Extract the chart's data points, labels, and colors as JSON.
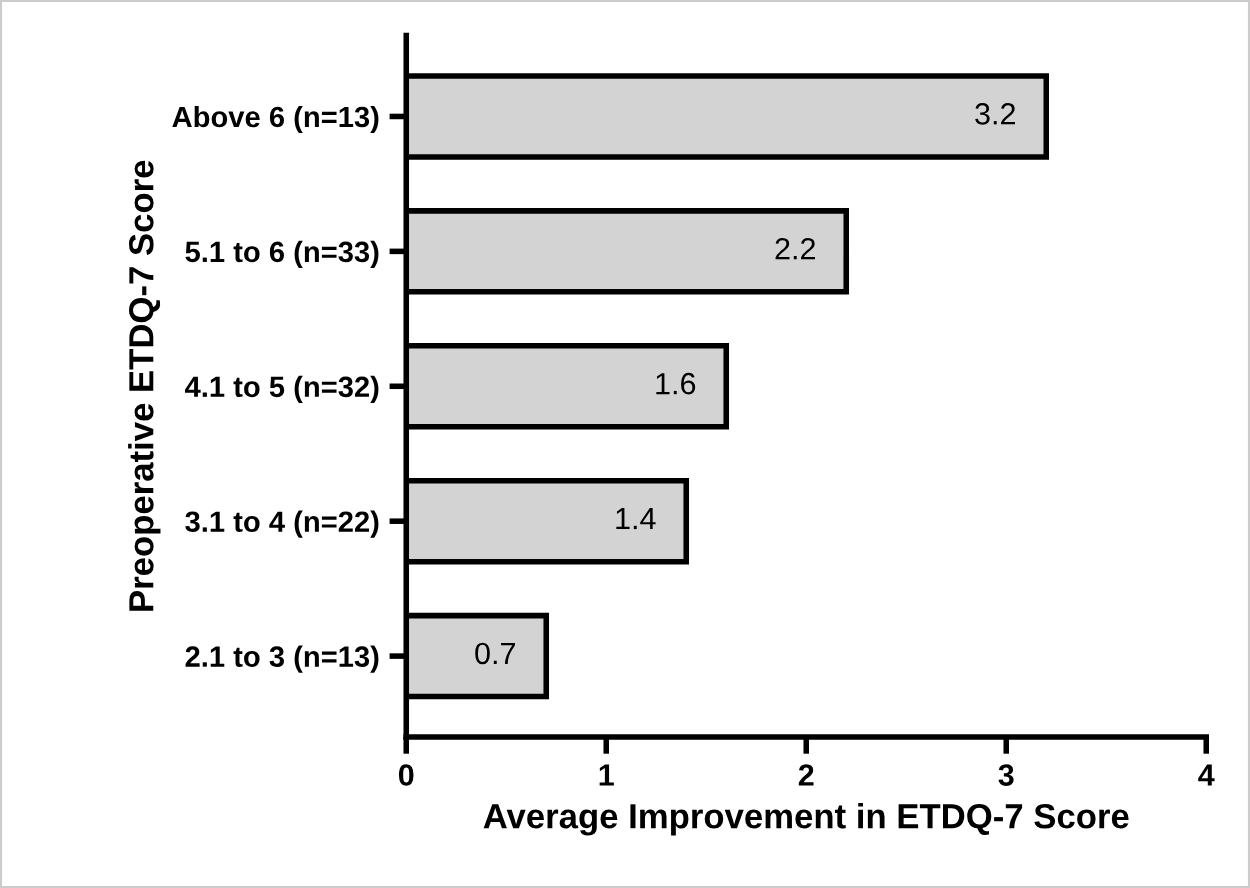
{
  "chart_data": {
    "type": "bar",
    "orientation": "horizontal",
    "xlabel": "Average Improvement in ETDQ-7 Score",
    "ylabel": "Preoperative ETDQ-7 Score",
    "categories": [
      "Above 6 (n=13)",
      "5.1 to 6 (n=33)",
      "4.1 to 5 (n=32)",
      "3.1 to 4 (n=22)",
      "2.1 to 3 (n=13)"
    ],
    "values": [
      3.2,
      2.2,
      1.6,
      1.4,
      0.7
    ],
    "color": "#d3d3d3",
    "data_labels": true,
    "xlim": [
      0,
      4
    ],
    "xticks": [
      0,
      1,
      2,
      3,
      4
    ],
    "grid": false,
    "legend": false
  }
}
